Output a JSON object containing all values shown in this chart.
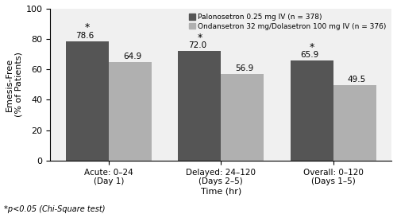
{
  "categories": [
    "Acute: 0–24\n(Day 1)",
    "Delayed: 24–120\n(Days 2–5)",
    "Overall: 0–120\n(Days 1–5)"
  ],
  "palonosetron_values": [
    78.6,
    72.0,
    65.9
  ],
  "ondansetron_values": [
    64.9,
    56.9,
    49.5
  ],
  "palonosetron_color": "#555555",
  "ondansetron_color": "#b0b0b0",
  "palonosetron_label": "Palonosetron 0.25 mg IV (n = 378)",
  "ondansetron_label": "Ondansetron 32 mg/Dolasetron 100 mg IV (n = 376)",
  "ylabel": "Emesis-Free\n(% of Patients)",
  "xlabel": "Time (hr)",
  "ylim": [
    0,
    100
  ],
  "yticks": [
    0,
    20,
    40,
    60,
    80,
    100
  ],
  "footnote": "*p<0.05 (Chi-Square test)",
  "bar_width": 0.38,
  "significant": [
    true,
    true,
    true
  ],
  "bg_color": "#f0f0f0"
}
